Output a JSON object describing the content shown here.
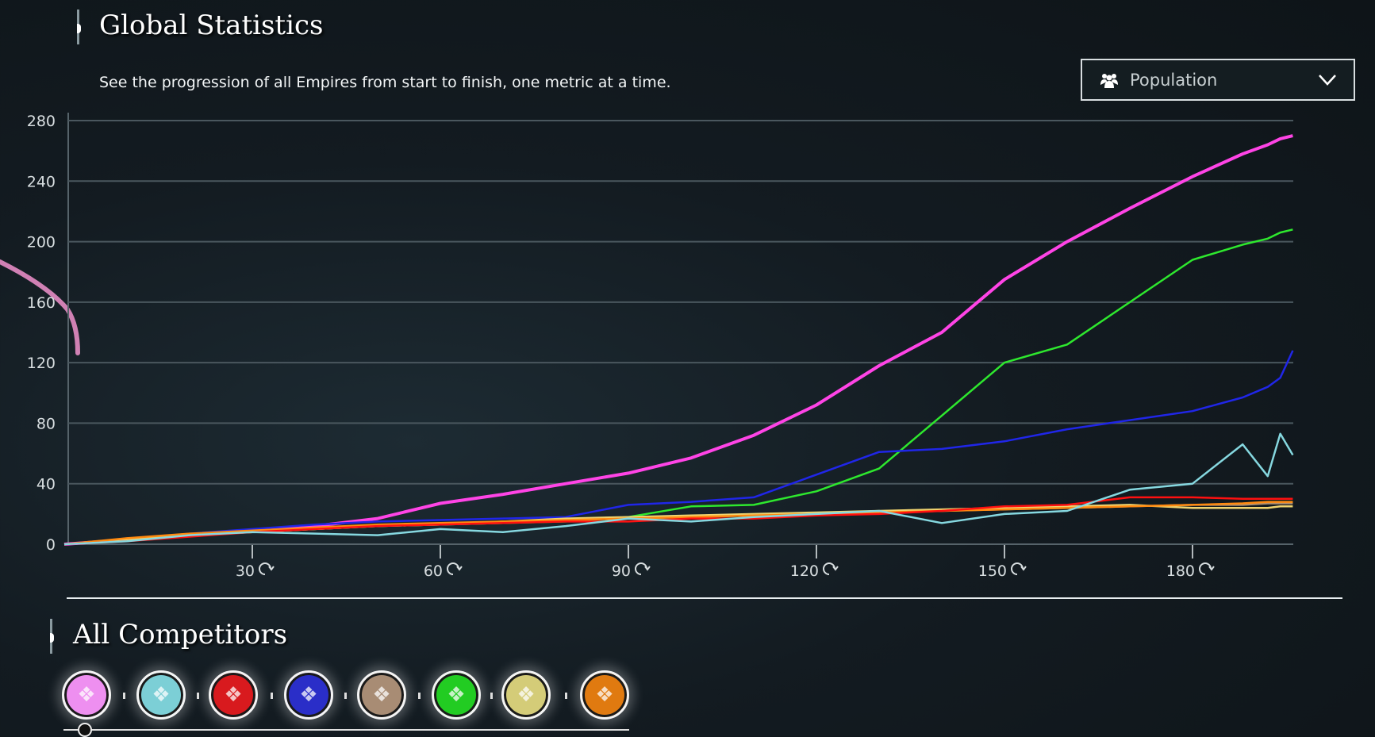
{
  "header": {
    "title": "Global Statistics",
    "subtitle": "See the progression of all Empires from start to finish, one metric at a time."
  },
  "metric_dropdown": {
    "selected": "Population",
    "icon": "people-icon"
  },
  "competitors": {
    "title": "All Competitors",
    "emblems": [
      {
        "color": "#ee8ff0"
      },
      {
        "color": "#7ccfd6"
      },
      {
        "color": "#d81a1e"
      },
      {
        "color": "#2a2ec8"
      },
      {
        "color": "#a88c74"
      },
      {
        "color": "#22cc22"
      },
      {
        "color": "#d4cc78"
      },
      {
        "color": "#e07a10"
      }
    ]
  },
  "chart_data": {
    "type": "line",
    "title": "Population",
    "xlabel": "Turn",
    "ylabel": "",
    "xlim": [
      0,
      196
    ],
    "ylim": [
      0,
      280
    ],
    "yticks": [
      0,
      40,
      80,
      120,
      160,
      200,
      240,
      280
    ],
    "xticks": [
      30,
      60,
      90,
      120,
      150,
      180
    ],
    "xtick_icon": "turn-icon",
    "grid": true,
    "x": [
      0,
      10,
      20,
      30,
      40,
      50,
      60,
      70,
      80,
      90,
      100,
      110,
      120,
      130,
      140,
      150,
      160,
      170,
      180,
      188,
      192,
      194,
      196
    ],
    "series": [
      {
        "name": "pink",
        "color": "#ff44e6",
        "width": 4,
        "values": [
          0,
          3,
          6,
          9,
          12,
          17,
          27,
          33,
          40,
          47,
          57,
          72,
          92,
          118,
          140,
          175,
          200,
          222,
          243,
          258,
          264,
          268,
          270
        ]
      },
      {
        "name": "green",
        "color": "#2ee82e",
        "width": 2.5,
        "values": [
          0,
          3,
          6,
          8,
          10,
          12,
          13,
          14,
          15,
          18,
          25,
          26,
          35,
          50,
          85,
          120,
          132,
          160,
          188,
          198,
          202,
          206,
          208
        ]
      },
      {
        "name": "blue",
        "color": "#2026e8",
        "width": 2.5,
        "values": [
          0,
          3,
          7,
          10,
          13,
          15,
          16,
          17,
          18,
          26,
          28,
          31,
          46,
          61,
          63,
          68,
          76,
          82,
          88,
          97,
          104,
          110,
          128
        ]
      },
      {
        "name": "tan",
        "color": "#b09070",
        "width": 2.5,
        "values": [
          0,
          3,
          6,
          8,
          10,
          12,
          13,
          14,
          16,
          17,
          18,
          19,
          20,
          21,
          22,
          23,
          24,
          25,
          26,
          26,
          27,
          27,
          27
        ]
      },
      {
        "name": "yellow",
        "color": "#f0d470",
        "width": 2.5,
        "values": [
          0,
          3,
          6,
          8,
          10,
          12,
          13,
          15,
          17,
          18,
          19,
          20,
          21,
          22,
          23,
          24,
          25,
          26,
          24,
          24,
          24,
          25,
          25
        ]
      },
      {
        "name": "orange",
        "color": "#ff8a10",
        "width": 2.5,
        "values": [
          0,
          4,
          7,
          9,
          11,
          13,
          14,
          15,
          16,
          17,
          18,
          19,
          20,
          21,
          22,
          23,
          24,
          25,
          26,
          27,
          28,
          28,
          28
        ]
      },
      {
        "name": "red",
        "color": "#ff1010",
        "width": 2.5,
        "values": [
          0,
          2,
          5,
          8,
          10,
          12,
          13,
          14,
          15,
          15,
          17,
          17,
          19,
          20,
          22,
          25,
          26,
          31,
          31,
          30,
          30,
          30,
          30
        ]
      },
      {
        "name": "cyan",
        "color": "#86d8e0",
        "width": 2.5,
        "values": [
          0,
          2,
          6,
          8,
          7,
          6,
          10,
          8,
          12,
          17,
          15,
          18,
          20,
          22,
          14,
          20,
          22,
          36,
          40,
          66,
          45,
          73,
          59
        ]
      }
    ]
  }
}
